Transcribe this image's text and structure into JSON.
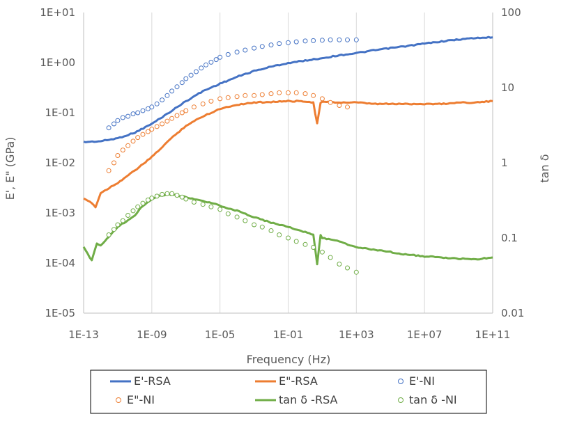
{
  "chart_data": {
    "type": "scatter",
    "x_scale": "log",
    "y_scale": "log",
    "y2_scale": "log",
    "xlabel": "Frequency (Hz)",
    "ylabel": "E', E\" (GPa)",
    "y2label": "tan δ",
    "xlim": [
      1e-13,
      100000000000.0
    ],
    "ylim": [
      1e-05,
      10
    ],
    "y2lim": [
      0.01,
      100
    ],
    "x_ticks": [
      "1E-13",
      "1E-09",
      "1E-05",
      "1E-01",
      "1E+03",
      "1E+07",
      "1E+11"
    ],
    "y_ticks": [
      "1E-05",
      "1E-04",
      "1E-03",
      "1E-02",
      "1E-01",
      "1E+00",
      "1E+01"
    ],
    "y2_ticks": [
      "0.01",
      "0.1",
      "1",
      "10",
      "100"
    ],
    "grid": "vertical",
    "legend_position": "bottom",
    "colors": {
      "blue": "#4472C4",
      "orange": "#ED7D31",
      "green": "#70AD47"
    },
    "series": [
      {
        "name": "E'-RSA",
        "style": "line",
        "axis": "left",
        "color": "#4472C4",
        "points": [
          [
            1e-13,
            0.026
          ],
          [
            1e-12,
            0.027
          ],
          [
            1e-11,
            0.031
          ],
          [
            1e-10,
            0.04
          ],
          [
            1e-09,
            0.06
          ],
          [
            1e-08,
            0.1
          ],
          [
            1e-07,
            0.17
          ],
          [
            1e-06,
            0.27
          ],
          [
            1e-05,
            0.38
          ],
          [
            0.0001,
            0.52
          ],
          [
            0.001,
            0.68
          ],
          [
            0.01,
            0.83
          ],
          [
            0.1,
            0.98
          ],
          [
            1,
            1.1
          ],
          [
            10,
            1.23
          ],
          [
            100,
            1.4
          ],
          [
            1000,
            1.55
          ],
          [
            10000.0,
            1.75
          ],
          [
            100000.0,
            1.95
          ],
          [
            1000000.0,
            2.15
          ],
          [
            10000000.0,
            2.4
          ],
          [
            100000000.0,
            2.65
          ],
          [
            1000000000.0,
            2.9
          ],
          [
            10000000000.0,
            3.1
          ],
          [
            100000000000.0,
            3.2
          ]
        ]
      },
      {
        "name": "E\"-RSA",
        "style": "line",
        "axis": "left",
        "color": "#ED7D31",
        "points": [
          [
            1e-13,
            0.0019
          ],
          [
            3e-13,
            0.0016
          ],
          [
            5e-13,
            0.0013
          ],
          [
            1e-12,
            0.0025
          ],
          [
            1e-11,
            0.004
          ],
          [
            1e-10,
            0.007
          ],
          [
            1e-09,
            0.013
          ],
          [
            1e-08,
            0.028
          ],
          [
            1e-07,
            0.055
          ],
          [
            1e-06,
            0.085
          ],
          [
            1e-05,
            0.12
          ],
          [
            0.0001,
            0.145
          ],
          [
            0.001,
            0.16
          ],
          [
            0.01,
            0.165
          ],
          [
            0.1,
            0.17
          ],
          [
            1,
            0.17
          ],
          [
            3,
            0.16
          ],
          [
            5,
            0.06
          ],
          [
            8,
            0.16
          ],
          [
            10,
            0.165
          ],
          [
            100,
            0.16
          ],
          [
            1000,
            0.16
          ],
          [
            10000.0,
            0.15
          ],
          [
            100000.0,
            0.15
          ],
          [
            1000000.0,
            0.15
          ],
          [
            10000000.0,
            0.15
          ],
          [
            100000000.0,
            0.15
          ],
          [
            1000000000.0,
            0.16
          ],
          [
            10000000000.0,
            0.16
          ],
          [
            100000000000.0,
            0.17
          ]
        ]
      },
      {
        "name": "E'-NI",
        "style": "marker",
        "axis": "left",
        "color": "#4472C4",
        "points": [
          [
            3e-12,
            0.05
          ],
          [
            6e-12,
            0.06
          ],
          [
            1e-11,
            0.07
          ],
          [
            2e-11,
            0.08
          ],
          [
            4e-11,
            0.085
          ],
          [
            8e-11,
            0.095
          ],
          [
            1.5e-10,
            0.1
          ],
          [
            3e-10,
            0.11
          ],
          [
            6e-10,
            0.12
          ],
          [
            1e-09,
            0.13
          ],
          [
            2e-09,
            0.15
          ],
          [
            4e-09,
            0.18
          ],
          [
            8e-09,
            0.22
          ],
          [
            1.5e-08,
            0.27
          ],
          [
            3e-08,
            0.33
          ],
          [
            6e-08,
            0.4
          ],
          [
            1e-07,
            0.48
          ],
          [
            2e-07,
            0.56
          ],
          [
            4e-07,
            0.66
          ],
          [
            8e-07,
            0.78
          ],
          [
            1.5e-06,
            0.9
          ],
          [
            3e-06,
            1.02
          ],
          [
            6e-06,
            1.15
          ],
          [
            1e-05,
            1.28
          ],
          [
            3e-05,
            1.45
          ],
          [
            0.0001,
            1.62
          ],
          [
            0.0003,
            1.78
          ],
          [
            0.001,
            1.95
          ],
          [
            0.003,
            2.1
          ],
          [
            0.01,
            2.25
          ],
          [
            0.03,
            2.4
          ],
          [
            0.1,
            2.5
          ],
          [
            0.3,
            2.6
          ],
          [
            1,
            2.7
          ],
          [
            3,
            2.75
          ],
          [
            10,
            2.8
          ],
          [
            30,
            2.85
          ],
          [
            100,
            2.85
          ],
          [
            300,
            2.85
          ],
          [
            1000,
            2.85
          ]
        ]
      },
      {
        "name": "E\"-NI",
        "style": "marker",
        "axis": "left",
        "color": "#ED7D31",
        "points": [
          [
            3e-12,
            0.007
          ],
          [
            6e-12,
            0.01
          ],
          [
            1e-11,
            0.014
          ],
          [
            2e-11,
            0.018
          ],
          [
            4e-11,
            0.022
          ],
          [
            8e-11,
            0.027
          ],
          [
            1.5e-10,
            0.032
          ],
          [
            3e-10,
            0.037
          ],
          [
            6e-10,
            0.042
          ],
          [
            1e-09,
            0.047
          ],
          [
            2e-09,
            0.053
          ],
          [
            4e-09,
            0.06
          ],
          [
            8e-09,
            0.068
          ],
          [
            1.5e-08,
            0.077
          ],
          [
            3e-08,
            0.088
          ],
          [
            6e-08,
            0.1
          ],
          [
            1e-07,
            0.11
          ],
          [
            3e-07,
            0.13
          ],
          [
            1e-06,
            0.15
          ],
          [
            3e-06,
            0.17
          ],
          [
            1e-05,
            0.19
          ],
          [
            3e-05,
            0.2
          ],
          [
            0.0001,
            0.21
          ],
          [
            0.0003,
            0.22
          ],
          [
            0.001,
            0.22
          ],
          [
            0.003,
            0.23
          ],
          [
            0.01,
            0.24
          ],
          [
            0.03,
            0.25
          ],
          [
            0.1,
            0.25
          ],
          [
            0.3,
            0.25
          ],
          [
            1,
            0.24
          ],
          [
            3,
            0.22
          ],
          [
            10,
            0.19
          ],
          [
            30,
            0.16
          ],
          [
            100,
            0.14
          ],
          [
            300,
            0.13
          ]
        ]
      },
      {
        "name": "tan δ -RSA",
        "style": "line",
        "axis": "right",
        "color": "#70AD47",
        "points": [
          [
            1e-13,
            0.075
          ],
          [
            3e-13,
            0.05
          ],
          [
            6e-13,
            0.085
          ],
          [
            1e-12,
            0.08
          ],
          [
            1e-11,
            0.14
          ],
          [
            1e-10,
            0.2
          ],
          [
            3e-10,
            0.27
          ],
          [
            1e-09,
            0.33
          ],
          [
            3e-09,
            0.37
          ],
          [
            1e-08,
            0.38
          ],
          [
            3e-08,
            0.37
          ],
          [
            1e-07,
            0.35
          ],
          [
            1e-06,
            0.31
          ],
          [
            1e-05,
            0.27
          ],
          [
            0.0001,
            0.23
          ],
          [
            0.001,
            0.19
          ],
          [
            0.01,
            0.16
          ],
          [
            0.1,
            0.14
          ],
          [
            1,
            0.12
          ],
          [
            3,
            0.11
          ],
          [
            5,
            0.045
          ],
          [
            8,
            0.11
          ],
          [
            10,
            0.1
          ],
          [
            100,
            0.09
          ],
          [
            1000,
            0.075
          ],
          [
            10000.0,
            0.07
          ],
          [
            100000.0,
            0.065
          ],
          [
            1000000.0,
            0.06
          ],
          [
            10000000.0,
            0.057
          ],
          [
            100000000.0,
            0.055
          ],
          [
            1000000000.0,
            0.053
          ],
          [
            10000000000.0,
            0.052
          ],
          [
            100000000000.0,
            0.055
          ]
        ]
      },
      {
        "name": "tan δ -NI",
        "style": "marker",
        "axis": "right",
        "color": "#70AD47",
        "points": [
          [
            3e-12,
            0.11
          ],
          [
            6e-12,
            0.13
          ],
          [
            1e-11,
            0.15
          ],
          [
            2e-11,
            0.17
          ],
          [
            4e-11,
            0.2
          ],
          [
            8e-11,
            0.23
          ],
          [
            1.5e-10,
            0.26
          ],
          [
            3e-10,
            0.29
          ],
          [
            6e-10,
            0.32
          ],
          [
            1e-09,
            0.34
          ],
          [
            2e-09,
            0.36
          ],
          [
            4e-09,
            0.38
          ],
          [
            8e-09,
            0.39
          ],
          [
            1.5e-08,
            0.39
          ],
          [
            3e-08,
            0.37
          ],
          [
            6e-08,
            0.35
          ],
          [
            1e-07,
            0.33
          ],
          [
            3e-07,
            0.3
          ],
          [
            1e-06,
            0.28
          ],
          [
            3e-06,
            0.26
          ],
          [
            1e-05,
            0.24
          ],
          [
            3e-05,
            0.21
          ],
          [
            0.0001,
            0.19
          ],
          [
            0.0003,
            0.17
          ],
          [
            0.001,
            0.15
          ],
          [
            0.003,
            0.14
          ],
          [
            0.01,
            0.125
          ],
          [
            0.03,
            0.11
          ],
          [
            0.1,
            0.1
          ],
          [
            0.3,
            0.09
          ],
          [
            1,
            0.082
          ],
          [
            3,
            0.075
          ],
          [
            10,
            0.065
          ],
          [
            30,
            0.055
          ],
          [
            100,
            0.045
          ],
          [
            300,
            0.04
          ],
          [
            1000,
            0.035
          ]
        ]
      }
    ]
  }
}
